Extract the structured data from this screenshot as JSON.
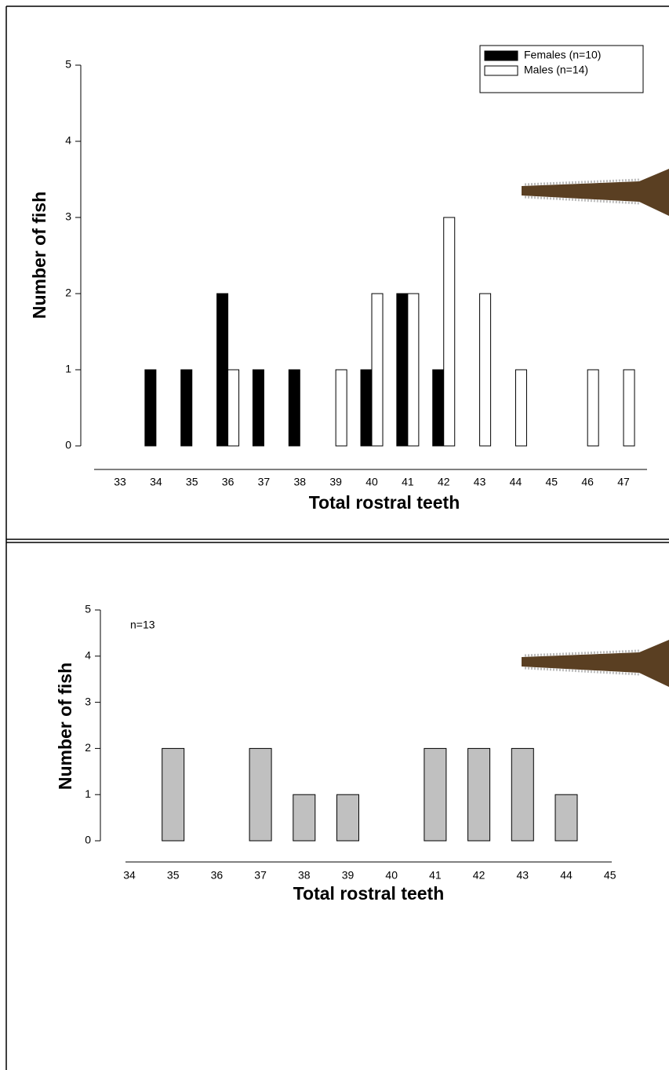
{
  "chart_data": [
    {
      "type": "bar",
      "xlabel": "Total rostral teeth",
      "ylabel": "Number of fish",
      "categories": [
        33,
        34,
        35,
        36,
        37,
        38,
        39,
        40,
        41,
        42,
        43,
        44,
        45,
        46,
        47
      ],
      "series": [
        {
          "name": "Females (n=10)",
          "color": "#000000",
          "values": [
            0,
            1,
            1,
            2,
            1,
            1,
            0,
            1,
            2,
            1,
            0,
            0,
            0,
            0,
            0
          ]
        },
        {
          "name": "Males (n=14)",
          "color": "#ffffff",
          "values": [
            0,
            0,
            0,
            1,
            0,
            0,
            1,
            2,
            2,
            3,
            2,
            1,
            0,
            1,
            1
          ]
        }
      ],
      "ylim": [
        0,
        5
      ],
      "yticks": [
        0,
        1,
        2,
        3,
        4,
        5
      ],
      "legend": "upper right"
    },
    {
      "type": "bar",
      "xlabel": "Total rostral teeth",
      "ylabel": "Number of fish",
      "annotation": "n=13",
      "categories": [
        34,
        35,
        36,
        37,
        38,
        39,
        40,
        41,
        42,
        43,
        44,
        45
      ],
      "values": [
        0,
        2,
        0,
        2,
        1,
        1,
        0,
        2,
        2,
        2,
        1,
        0
      ],
      "color": "#c0c0c0",
      "ylim": [
        0,
        5
      ],
      "yticks": [
        0,
        1,
        2,
        3,
        4,
        5
      ]
    }
  ]
}
